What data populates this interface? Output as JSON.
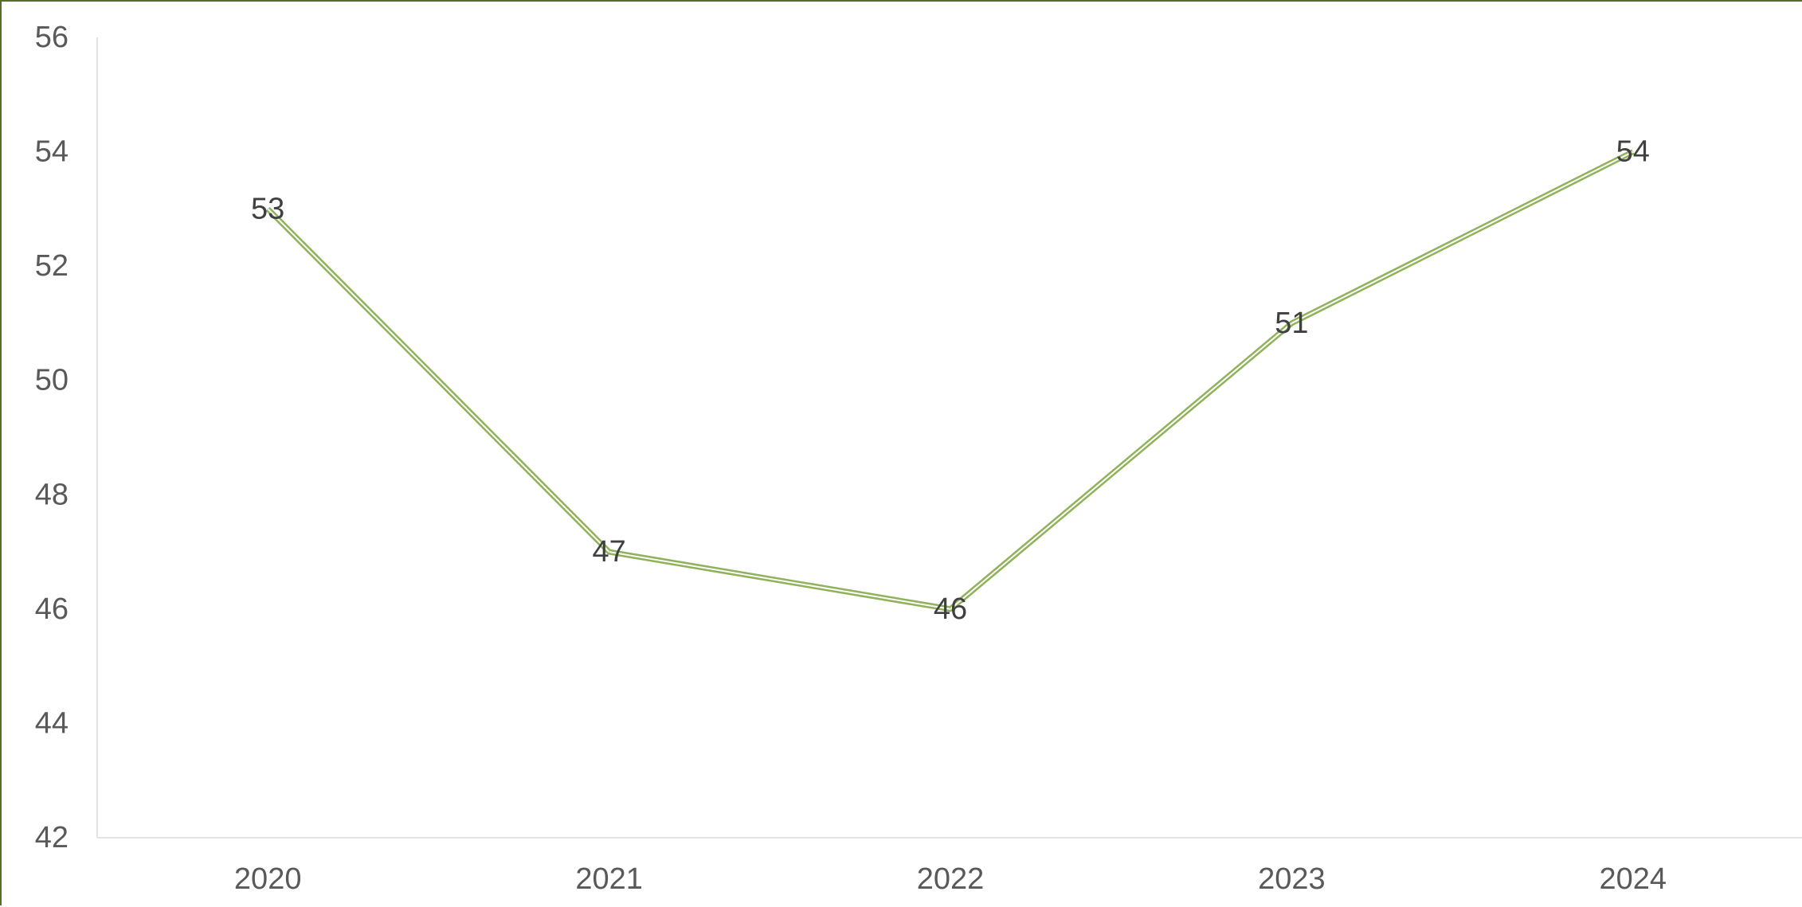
{
  "chart_data": {
    "type": "line",
    "categories": [
      "2020",
      "2021",
      "2022",
      "2023",
      "2024"
    ],
    "series": [
      {
        "values": [
          53,
          47,
          46,
          51,
          54
        ]
      }
    ],
    "ylim": [
      42,
      56
    ],
    "yticks": [
      42,
      44,
      46,
      48,
      50,
      52,
      54,
      56
    ],
    "data_labels": true,
    "grid": false,
    "legend": "none",
    "colors": {
      "line": "#8FB25A",
      "frame": "#5A6B2E",
      "axis": "#D9D9D9"
    }
  }
}
